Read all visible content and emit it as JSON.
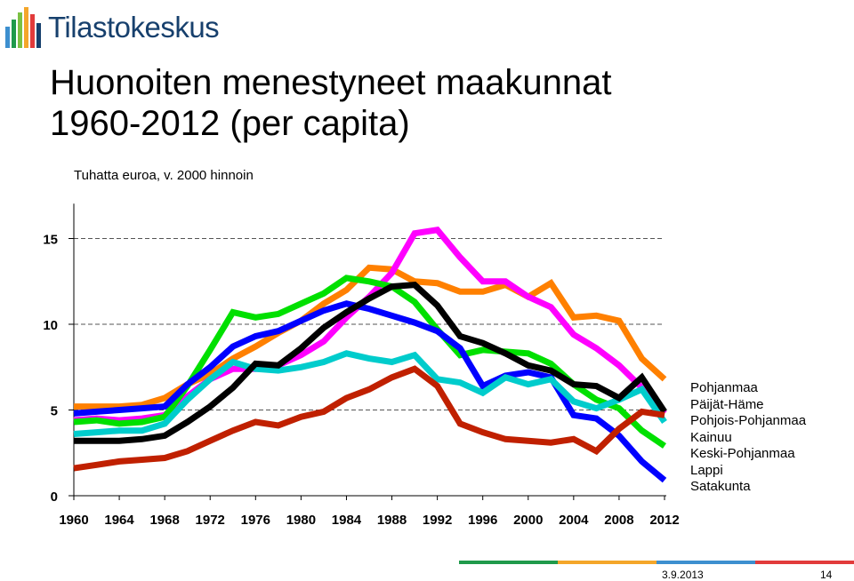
{
  "header": {
    "logo_text": "Tilastokeskus",
    "title_line1": "Huonoiten menestyneet maakunnat",
    "title_line2": "1960-2012 (per capita)"
  },
  "footer": {
    "date": "3.9.2013",
    "page_number": "14",
    "bar_colors": [
      "#1f9a4b",
      "#f4a62a",
      "#3d8fcf",
      "#e23b3b"
    ]
  },
  "chart_data": {
    "type": "line",
    "title": "",
    "ylabel": "Tuhatta euroa, v. 2000 hinnoin",
    "xlabel": "",
    "ylim": [
      0,
      16
    ],
    "yticks": [
      0,
      5,
      10,
      15
    ],
    "xticks": [
      "1960",
      "1964",
      "1968",
      "1972",
      "1976",
      "1980",
      "1984",
      "1988",
      "1992",
      "1996",
      "2000",
      "2004",
      "2008",
      "2012"
    ],
    "x": [
      1960,
      1962,
      1964,
      1966,
      1968,
      1970,
      1972,
      1974,
      1976,
      1978,
      1980,
      1982,
      1984,
      1986,
      1988,
      1990,
      1992,
      1994,
      1996,
      1998,
      2000,
      2002,
      2004,
      2006,
      2008,
      2010,
      2012
    ],
    "series": [
      {
        "name": "Pohjanmaa",
        "color": "#ff8000",
        "values": [
          5.2,
          5.2,
          5.2,
          5.3,
          5.7,
          6.5,
          7.1,
          8.0,
          8.7,
          9.5,
          10.2,
          11.2,
          12.0,
          13.3,
          13.2,
          12.5,
          12.4,
          11.9,
          11.9,
          12.3,
          11.6,
          12.4,
          10.4,
          10.5,
          10.2,
          8.0,
          6.8
        ]
      },
      {
        "name": "Päijät-Häme",
        "color": "#ff00ff",
        "values": [
          4.4,
          4.5,
          4.4,
          4.5,
          4.7,
          5.8,
          6.8,
          7.4,
          7.4,
          7.6,
          8.2,
          9.0,
          10.4,
          11.6,
          13.0,
          15.3,
          15.5,
          13.9,
          12.5,
          12.5,
          11.6,
          11.0,
          9.4,
          8.6,
          7.6,
          6.3,
          4.8
        ]
      },
      {
        "name": "Pohjois-Pohjanmaa",
        "color": "#00e000",
        "values": [
          4.3,
          4.4,
          4.2,
          4.3,
          4.6,
          6.4,
          8.5,
          10.7,
          10.4,
          10.6,
          11.2,
          11.8,
          12.7,
          12.5,
          12.2,
          11.3,
          9.7,
          8.2,
          8.5,
          8.4,
          8.3,
          7.7,
          6.5,
          5.6,
          5.1,
          3.8,
          2.9
        ]
      },
      {
        "name": "Kainuu",
        "color": "#0000ff",
        "values": [
          4.8,
          4.9,
          5.0,
          5.1,
          5.2,
          6.5,
          7.5,
          8.7,
          9.3,
          9.6,
          10.2,
          10.8,
          11.2,
          10.9,
          10.5,
          10.1,
          9.6,
          8.6,
          6.4,
          7.0,
          7.2,
          6.9,
          4.7,
          4.5,
          3.5,
          2.0,
          0.9
        ]
      },
      {
        "name": "Keski-Pohjanmaa",
        "color": "#00cccc",
        "values": [
          3.6,
          3.7,
          3.8,
          3.8,
          4.2,
          5.6,
          6.8,
          7.8,
          7.4,
          7.3,
          7.5,
          7.8,
          8.3,
          8.0,
          7.8,
          8.2,
          6.8,
          6.6,
          6.0,
          6.9,
          6.5,
          6.8,
          5.5,
          5.1,
          5.6,
          6.2,
          4.3
        ]
      },
      {
        "name": "Lappi",
        "color": "#000000",
        "values": [
          3.2,
          3.2,
          3.2,
          3.3,
          3.5,
          4.3,
          5.2,
          6.3,
          7.7,
          7.6,
          8.6,
          9.8,
          10.7,
          11.5,
          12.2,
          12.3,
          11.1,
          9.3,
          8.9,
          8.3,
          7.6,
          7.3,
          6.5,
          6.4,
          5.7,
          6.9,
          4.9
        ]
      },
      {
        "name": "Satakunta",
        "color": "#c02000",
        "values": [
          1.6,
          1.8,
          2.0,
          2.1,
          2.2,
          2.6,
          3.2,
          3.8,
          4.3,
          4.1,
          4.6,
          4.9,
          5.7,
          6.2,
          6.9,
          7.4,
          6.4,
          4.2,
          3.7,
          3.3,
          3.2,
          3.1,
          3.3,
          2.6,
          3.9,
          4.9,
          4.7
        ]
      }
    ],
    "legend_position": "right"
  }
}
